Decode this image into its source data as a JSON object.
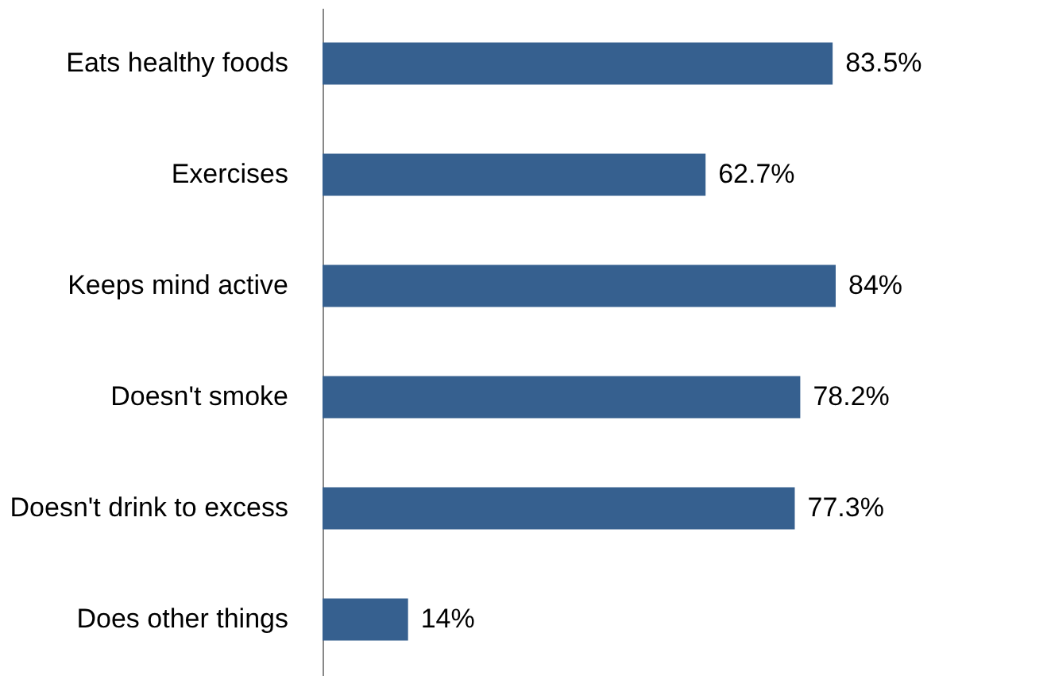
{
  "chart_data": {
    "type": "bar",
    "orientation": "horizontal",
    "categories": [
      "Eats healthy foods",
      "Exercises",
      "Keeps mind active",
      "Doesn't smoke",
      "Doesn't drink to excess",
      "Does other things"
    ],
    "values": [
      83.5,
      62.7,
      84,
      78.2,
      77.3,
      14
    ],
    "value_labels": [
      "83.5%",
      "62.7%",
      "84%",
      "78.2%",
      "77.3%",
      "14%"
    ],
    "color": "#36608f",
    "tick_labels": "y",
    "grid": false
  }
}
